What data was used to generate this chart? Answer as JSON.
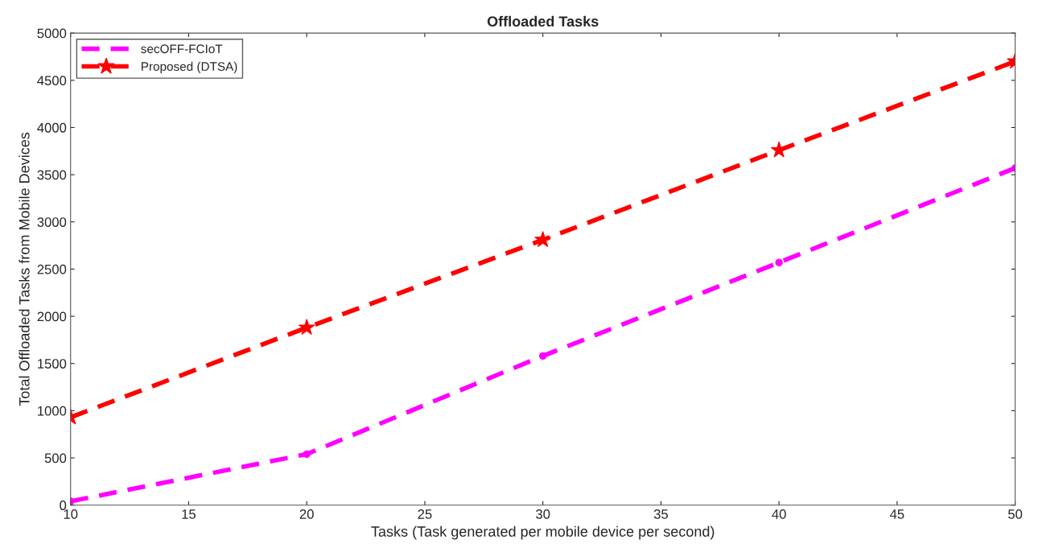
{
  "chart_data": {
    "type": "line",
    "title": "Offloaded Tasks",
    "xlabel": "Tasks (Task generated per mobile device per second)",
    "ylabel": "Total Offloaded Tasks from Mobile Devices",
    "x": [
      10,
      20,
      30,
      40,
      50
    ],
    "series": [
      {
        "name": "secOFF-FCIoT",
        "color": "#ff00ff",
        "values": [
          40,
          540,
          1580,
          2570,
          3570
        ],
        "marker": "circle"
      },
      {
        "name": "Proposed (DTSA)",
        "color": "#ff0000",
        "values": [
          930,
          1880,
          2810,
          3760,
          4700
        ],
        "marker": "star"
      }
    ],
    "xlim": [
      10,
      50
    ],
    "xticks": [
      10,
      15,
      20,
      25,
      30,
      35,
      40,
      45,
      50
    ],
    "ylim": [
      0,
      5000
    ],
    "yticks": [
      0,
      500,
      1000,
      1500,
      2000,
      2500,
      3000,
      3500,
      4000,
      4500,
      5000
    ],
    "grid": false,
    "legend": "top left",
    "line_style": "dashed"
  }
}
